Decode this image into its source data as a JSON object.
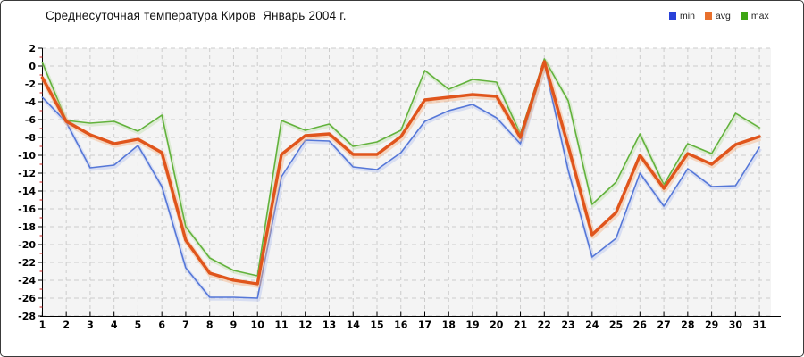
{
  "chart_data": {
    "type": "line",
    "title": "Среднесуточная температура Киров  Январь 2004 г.",
    "xlabel": "",
    "ylabel": "",
    "categories": [
      "1",
      "2",
      "3",
      "4",
      "5",
      "6",
      "7",
      "8",
      "9",
      "10",
      "11",
      "12",
      "13",
      "14",
      "15",
      "16",
      "17",
      "18",
      "19",
      "20",
      "21",
      "22",
      "23",
      "24",
      "25",
      "26",
      "27",
      "28",
      "29",
      "30",
      "31"
    ],
    "y_ticks": [
      2,
      0,
      -2,
      -4,
      -6,
      -8,
      -10,
      -12,
      -14,
      -16,
      -18,
      -20,
      -22,
      -24,
      -26,
      -28
    ],
    "ylim": [
      -28,
      2
    ],
    "grid": "dashed",
    "legend_position": "top-right",
    "plot_bg": "#f4f4f4",
    "grid_color": "#cccccc",
    "axis_color": "#000000",
    "minor_tick_color": "#cc2222",
    "series": [
      {
        "name": "min",
        "color": "#5577d8",
        "halo_color": "#b6c4ef",
        "legend_color": "#2941d8",
        "width": 1.6,
        "values": [
          -3.5,
          -6.3,
          -11.4,
          -11.1,
          -8.9,
          -13.5,
          -22.6,
          -25.9,
          -25.9,
          -26.0,
          -12.4,
          -8.3,
          -8.4,
          -11.3,
          -11.6,
          -9.7,
          -6.2,
          -5.0,
          -4.3,
          -5.8,
          -8.7,
          0.3,
          -11.7,
          -21.4,
          -19.3,
          -12.0,
          -15.7,
          -11.5,
          -13.5,
          -13.4,
          -9.1
        ]
      },
      {
        "name": "avg",
        "color": "#e0551c",
        "halo_color": "#f3b183",
        "legend_color": "#e8702d",
        "width": 3.4,
        "values": [
          -1.3,
          -6.2,
          -7.7,
          -8.7,
          -8.2,
          -9.7,
          -19.5,
          -23.2,
          -24.0,
          -24.4,
          -9.9,
          -7.8,
          -7.6,
          -9.9,
          -9.9,
          -7.9,
          -3.8,
          -3.5,
          -3.2,
          -3.4,
          -8.0,
          0.5,
          -9.0,
          -18.9,
          -16.4,
          -10.0,
          -13.7,
          -9.8,
          -11.0,
          -8.8,
          -7.9
        ]
      },
      {
        "name": "max",
        "color": "#62b23c",
        "halo_color": "#c2e0ad",
        "legend_color": "#3ea513",
        "width": 1.6,
        "values": [
          0.4,
          -6.1,
          -6.4,
          -6.2,
          -7.3,
          -5.5,
          -18.0,
          -21.5,
          -22.9,
          -23.5,
          -6.1,
          -7.2,
          -6.5,
          -9.0,
          -8.5,
          -7.2,
          -0.5,
          -2.6,
          -1.5,
          -1.8,
          -7.6,
          0.8,
          -3.9,
          -15.5,
          -13.0,
          -7.6,
          -13.3,
          -8.7,
          -9.8,
          -5.3,
          -6.9
        ]
      }
    ]
  }
}
